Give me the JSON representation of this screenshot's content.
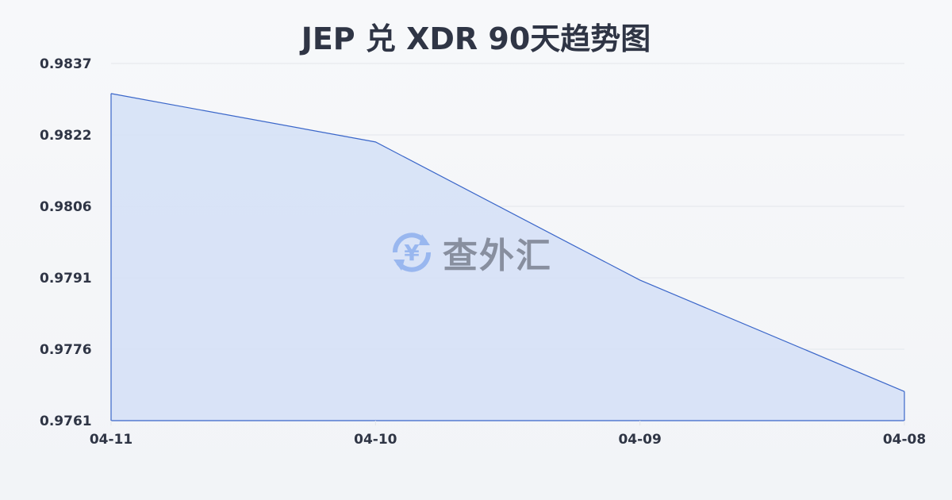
{
  "chart_data": {
    "type": "area",
    "title": "JEP 兑 XDR 90天趋势图",
    "xlabel": "",
    "ylabel": "",
    "categories": [
      "04-11",
      "04-10",
      "04-09",
      "04-08"
    ],
    "values": [
      0.98306,
      0.98203,
      0.97909,
      0.97672
    ],
    "y_ticks": [
      "0.9837",
      "0.9822",
      "0.9806",
      "0.9791",
      "0.9776",
      "0.9761"
    ],
    "ylim": [
      0.9761,
      0.9837
    ],
    "grid": true,
    "legend": "none",
    "colors": {
      "line": "#3a66c9",
      "fill": "#d6e1f6",
      "grid": "#e3e6eb",
      "text": "#2f3545"
    }
  },
  "watermark": {
    "text": "查外汇",
    "icon": "yen-exchange-icon",
    "color": "#8fb0ee"
  }
}
